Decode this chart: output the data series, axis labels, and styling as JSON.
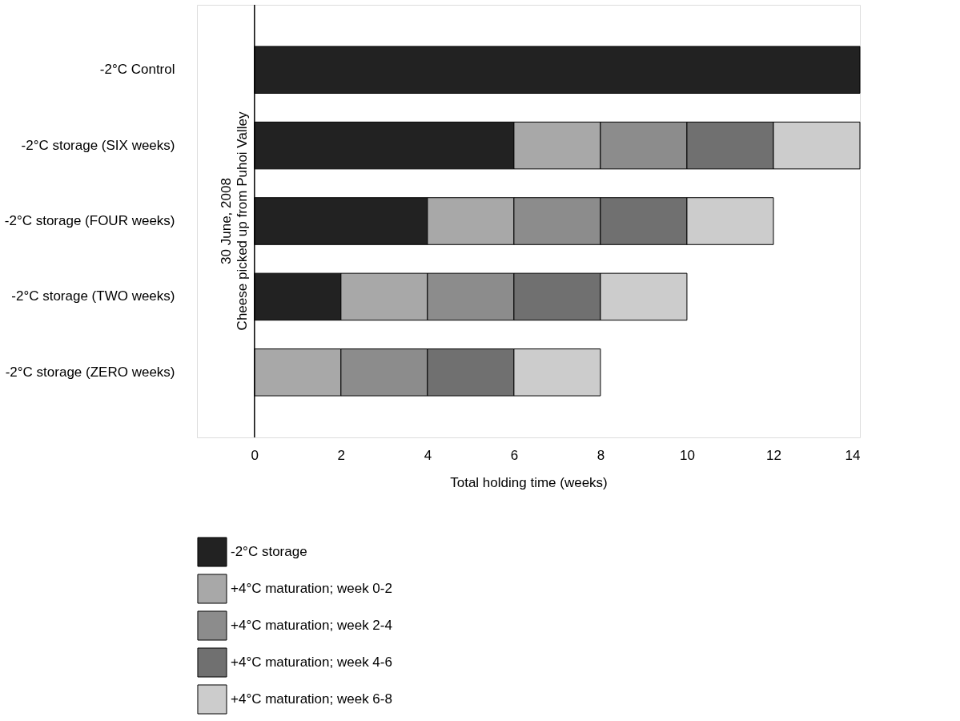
{
  "chart_data": {
    "type": "bar",
    "orientation": "horizontal",
    "stacked": true,
    "xlabel": "Total holding time (weeks)",
    "categories": [
      "-2°C Control",
      "-2°C storage (SIX weeks)",
      "-2°C storage (FOUR weeks)",
      "-2°C storage (TWO weeks)",
      "-2°C storage (ZERO weeks)"
    ],
    "series": [
      {
        "name": "-2°C storage",
        "color": "#222222",
        "values": [
          14,
          6,
          4,
          2,
          null
        ]
      },
      {
        "name": "+4°C maturation; week 0-2",
        "color": "#a8a8a8",
        "values": [
          null,
          2,
          2,
          2,
          2
        ]
      },
      {
        "name": "+4°C maturation; week 2-4",
        "color": "#8c8c8c",
        "values": [
          null,
          2,
          2,
          2,
          2
        ]
      },
      {
        "name": "+4°C maturation; week 4-6",
        "color": "#707070",
        "values": [
          null,
          2,
          2,
          2,
          2
        ]
      },
      {
        "name": "+4°C maturation; week 6-8",
        "color": "#cccccc",
        "values": [
          null,
          2,
          2,
          2,
          2
        ]
      }
    ],
    "xlim": [
      -1.33,
      14
    ],
    "xticks": [
      0,
      2,
      4,
      6,
      8,
      10,
      12,
      14
    ],
    "ref_lines": [
      {
        "axis": "x",
        "value": 0,
        "label": "30 June, 2008\nCheese picked up from Puhoi Valley",
        "color": "#000000"
      }
    ],
    "grid": false,
    "legend": "bottom left"
  }
}
